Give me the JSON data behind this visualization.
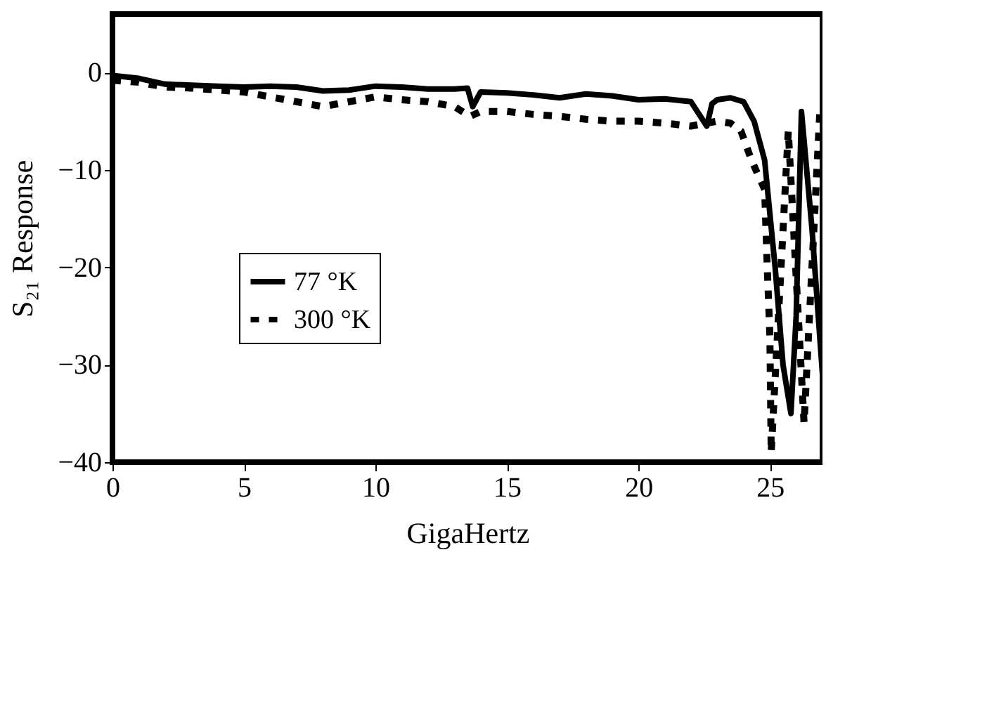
{
  "chart_data": {
    "type": "line",
    "xlabel": "GigaHertz",
    "ylabel": "S₂₁ Response",
    "xlim": [
      0,
      27
    ],
    "ylim": [
      -40,
      6
    ],
    "xticks": [
      0,
      5,
      10,
      15,
      20,
      25
    ],
    "yticks": [
      0,
      -10,
      -20,
      -30,
      -40
    ],
    "grid": false,
    "legend": "left",
    "marker": "none",
    "series": [
      {
        "name": "77 °K",
        "color": "#000000",
        "line_style": "solid",
        "x": [
          0,
          1,
          2,
          3,
          4,
          5,
          6,
          7,
          8,
          9,
          10,
          11,
          12,
          13,
          13.5,
          13.7,
          14,
          15,
          16,
          17,
          18,
          19,
          20,
          21,
          22,
          22.6,
          22.8,
          23,
          23.5,
          24,
          24.4,
          24.8,
          25.2,
          25.5,
          25.8,
          26,
          26.2,
          26.6,
          27
        ],
        "values": [
          -0.3,
          -0.6,
          -1.2,
          -1.3,
          -1.4,
          -1.5,
          -1.4,
          -1.5,
          -1.9,
          -1.8,
          -1.4,
          -1.5,
          -1.7,
          -1.7,
          -1.6,
          -3.5,
          -2,
          -2.1,
          -2.3,
          -2.6,
          -2.2,
          -2.4,
          -2.8,
          -2.7,
          -3,
          -5.5,
          -3.2,
          -2.8,
          -2.6,
          -3,
          -5,
          -9,
          -20,
          -30,
          -35,
          -25,
          -4,
          -16,
          -31
        ]
      },
      {
        "name": "300 °K",
        "color": "#000000",
        "line_style": "dotted",
        "x": [
          0,
          1,
          2,
          3,
          4,
          5,
          6,
          7,
          8,
          9,
          10,
          11,
          12,
          13,
          13.6,
          14,
          15,
          16,
          17,
          18,
          19,
          20,
          21,
          22,
          23,
          23.5,
          23.9,
          24.3,
          24.8,
          24.9,
          25,
          25.05,
          25.7,
          26.3,
          26.9
        ],
        "values": [
          -0.8,
          -1,
          -1.5,
          -1.6,
          -1.8,
          -2,
          -2.5,
          -3,
          -3.5,
          -3,
          -2.5,
          -2.8,
          -3,
          -3.5,
          -4.5,
          -4,
          -4,
          -4.3,
          -4.5,
          -4.8,
          -5,
          -5,
          -5.2,
          -5.5,
          -5,
          -5.2,
          -6,
          -9,
          -12,
          -20,
          -27,
          -39,
          -6,
          -36,
          -4
        ]
      }
    ]
  }
}
